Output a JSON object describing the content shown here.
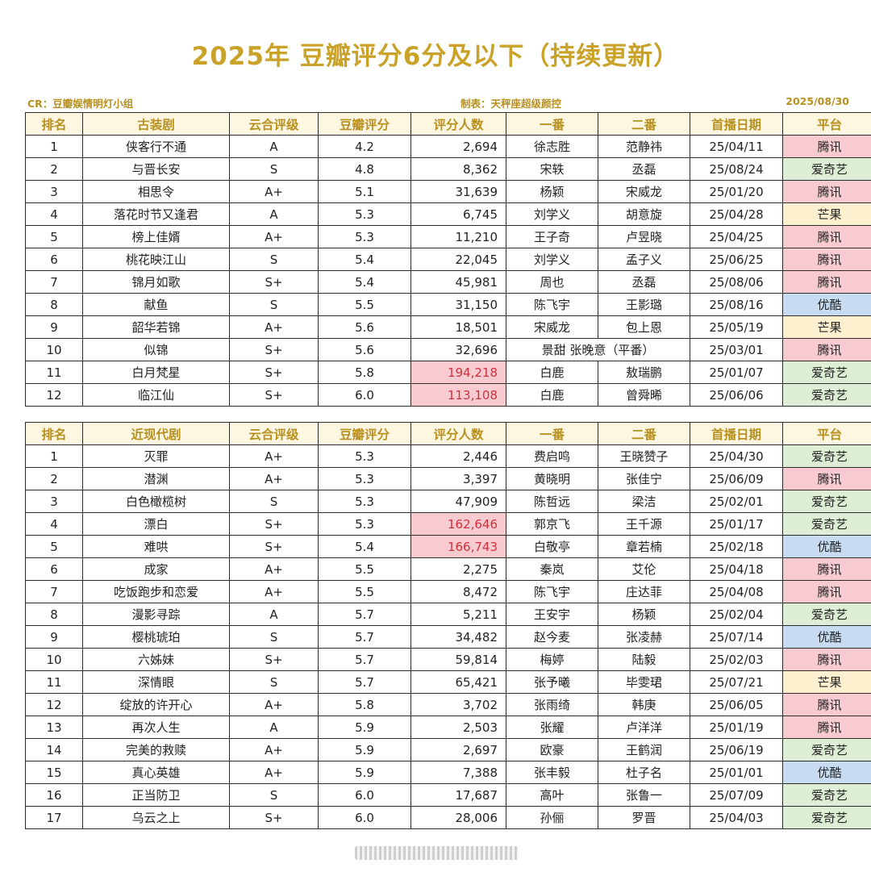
{
  "title": "2025年 豆瓣评分6分及以下（持续更新）",
  "meta": {
    "credit": "CR：豆瓣娱情明灯小组",
    "maker": "制表：天秤座超级颜控",
    "date": "2025/08/30"
  },
  "colors": {
    "title": "#c9a227",
    "header_bg": "#fdf7e2",
    "tencent": "#f7cbd0",
    "iqiyi": "#dcefd5",
    "youku": "#c7dcf1",
    "mango": "#fcf0cf",
    "highlight_text": "#d0303c"
  },
  "tables": [
    {
      "headers": [
        "排名",
        "古装剧",
        "云合评级",
        "豆瓣评分",
        "评分人数",
        "一番",
        "二番",
        "首播日期",
        "平台"
      ],
      "rows": [
        {
          "rank": "1",
          "name": "侠客行不通",
          "grade": "A",
          "score": "4.2",
          "votes": "2,694",
          "lead1": "徐志胜",
          "lead2": "范静祎",
          "date": "25/04/11",
          "platform": "腾讯"
        },
        {
          "rank": "2",
          "name": "与晋长安",
          "grade": "S",
          "score": "4.8",
          "votes": "8,362",
          "lead1": "宋轶",
          "lead2": "丞磊",
          "date": "25/08/24",
          "platform": "爱奇艺"
        },
        {
          "rank": "3",
          "name": "相思令",
          "grade": "A+",
          "score": "5.1",
          "votes": "31,639",
          "lead1": "杨颖",
          "lead2": "宋威龙",
          "date": "25/01/20",
          "platform": "腾讯"
        },
        {
          "rank": "4",
          "name": "落花时节又逢君",
          "grade": "A",
          "score": "5.3",
          "votes": "6,745",
          "lead1": "刘学义",
          "lead2": "胡意旋",
          "date": "25/04/28",
          "platform": "芒果"
        },
        {
          "rank": "5",
          "name": "榜上佳婿",
          "grade": "A+",
          "score": "5.3",
          "votes": "11,210",
          "lead1": "王子奇",
          "lead2": "卢昱晓",
          "date": "25/04/25",
          "platform": "腾讯"
        },
        {
          "rank": "6",
          "name": "桃花映江山",
          "grade": "S",
          "score": "5.4",
          "votes": "22,045",
          "lead1": "刘学义",
          "lead2": "孟子义",
          "date": "25/06/25",
          "platform": "腾讯"
        },
        {
          "rank": "7",
          "name": "锦月如歌",
          "grade": "S+",
          "score": "5.4",
          "votes": "45,981",
          "lead1": "周也",
          "lead2": "丞磊",
          "date": "25/08/06",
          "platform": "腾讯"
        },
        {
          "rank": "8",
          "name": "献鱼",
          "grade": "S",
          "score": "5.5",
          "votes": "31,150",
          "lead1": "陈飞宇",
          "lead2": "王影璐",
          "date": "25/08/16",
          "platform": "优酷"
        },
        {
          "rank": "9",
          "name": "韶华若锦",
          "grade": "A+",
          "score": "5.6",
          "votes": "18,501",
          "lead1": "宋威龙",
          "lead2": "包上恩",
          "date": "25/05/19",
          "platform": "芒果"
        },
        {
          "rank": "10",
          "name": "似锦",
          "grade": "S+",
          "score": "5.6",
          "votes": "32,696",
          "lead_merged": "景甜  张晚意（平番）",
          "date": "25/03/01",
          "platform": "腾讯"
        },
        {
          "rank": "11",
          "name": "白月梵星",
          "grade": "S+",
          "score": "5.8",
          "votes": "194,218",
          "high": true,
          "lead1": "白鹿",
          "lead2": "敖瑞鹏",
          "date": "25/01/07",
          "platform": "爱奇艺"
        },
        {
          "rank": "12",
          "name": "临江仙",
          "grade": "S+",
          "score": "6.0",
          "votes": "113,108",
          "high": true,
          "lead1": "白鹿",
          "lead2": "曾舜晞",
          "date": "25/06/06",
          "platform": "爱奇艺"
        }
      ]
    },
    {
      "headers": [
        "排名",
        "近现代剧",
        "云合评级",
        "豆瓣评分",
        "评分人数",
        "一番",
        "二番",
        "首播日期",
        "平台"
      ],
      "rows": [
        {
          "rank": "1",
          "name": "灭罪",
          "grade": "A+",
          "score": "5.3",
          "votes": "2,446",
          "lead1": "费启鸣",
          "lead2": "王晓赞子",
          "date": "25/04/30",
          "platform": "爱奇艺"
        },
        {
          "rank": "2",
          "name": "潜渊",
          "grade": "A+",
          "score": "5.3",
          "votes": "3,397",
          "lead1": "黄晓明",
          "lead2": "张佳宁",
          "date": "25/06/09",
          "platform": "腾讯"
        },
        {
          "rank": "3",
          "name": "白色橄榄树",
          "grade": "S",
          "score": "5.3",
          "votes": "47,909",
          "lead1": "陈哲远",
          "lead2": "梁洁",
          "date": "25/02/01",
          "platform": "爱奇艺"
        },
        {
          "rank": "4",
          "name": "漂白",
          "grade": "S+",
          "score": "5.3",
          "votes": "162,646",
          "high": true,
          "lead1": "郭京飞",
          "lead2": "王千源",
          "date": "25/01/17",
          "platform": "爱奇艺"
        },
        {
          "rank": "5",
          "name": "难哄",
          "grade": "S+",
          "score": "5.4",
          "votes": "166,743",
          "high": true,
          "lead1": "白敬亭",
          "lead2": "章若楠",
          "date": "25/02/18",
          "platform": "优酷"
        },
        {
          "rank": "6",
          "name": "成家",
          "grade": "A+",
          "score": "5.5",
          "votes": "2,275",
          "lead1": "秦岚",
          "lead2": "艾伦",
          "date": "25/04/18",
          "platform": "腾讯"
        },
        {
          "rank": "7",
          "name": "吃饭跑步和恋爱",
          "grade": "A+",
          "score": "5.5",
          "votes": "8,472",
          "lead1": "陈飞宇",
          "lead2": "庄达菲",
          "date": "25/04/08",
          "platform": "腾讯"
        },
        {
          "rank": "8",
          "name": "漫影寻踪",
          "grade": "A",
          "score": "5.7",
          "votes": "5,211",
          "lead1": "王安宇",
          "lead2": "杨颖",
          "date": "25/02/04",
          "platform": "爱奇艺"
        },
        {
          "rank": "9",
          "name": "樱桃琥珀",
          "grade": "S",
          "score": "5.7",
          "votes": "34,482",
          "lead1": "赵今麦",
          "lead2": "张凌赫",
          "date": "25/07/14",
          "platform": "优酷"
        },
        {
          "rank": "10",
          "name": "六姊妹",
          "grade": "S+",
          "score": "5.7",
          "votes": "59,814",
          "lead1": "梅婷",
          "lead2": "陆毅",
          "date": "25/02/03",
          "platform": "腾讯"
        },
        {
          "rank": "11",
          "name": "深情眼",
          "grade": "S",
          "score": "5.7",
          "votes": "65,421",
          "lead1": "张予曦",
          "lead2": "毕雯珺",
          "date": "25/07/21",
          "platform": "芒果"
        },
        {
          "rank": "12",
          "name": "绽放的许开心",
          "grade": "A+",
          "score": "5.8",
          "votes": "3,702",
          "lead1": "张雨绮",
          "lead2": "韩庚",
          "date": "25/06/05",
          "platform": "腾讯"
        },
        {
          "rank": "13",
          "name": "再次人生",
          "grade": "A",
          "score": "5.9",
          "votes": "2,503",
          "lead1": "张耀",
          "lead2": "卢洋洋",
          "date": "25/01/19",
          "platform": "腾讯"
        },
        {
          "rank": "14",
          "name": "完美的救赎",
          "grade": "A+",
          "score": "5.9",
          "votes": "2,697",
          "lead1": "欧豪",
          "lead2": "王鹤润",
          "date": "25/06/19",
          "platform": "爱奇艺"
        },
        {
          "rank": "15",
          "name": "真心英雄",
          "grade": "A+",
          "score": "5.9",
          "votes": "7,388",
          "lead1": "张丰毅",
          "lead2": "杜子名",
          "date": "25/01/01",
          "platform": "优酷"
        },
        {
          "rank": "16",
          "name": "正当防卫",
          "grade": "S",
          "score": "6.0",
          "votes": "17,687",
          "lead1": "高叶",
          "lead2": "张鲁一",
          "date": "25/07/09",
          "platform": "爱奇艺"
        },
        {
          "rank": "17",
          "name": "乌云之上",
          "grade": "S+",
          "score": "6.0",
          "votes": "28,006",
          "lead1": "孙俪",
          "lead2": "罗晋",
          "date": "25/04/03",
          "platform": "爱奇艺"
        }
      ]
    }
  ]
}
